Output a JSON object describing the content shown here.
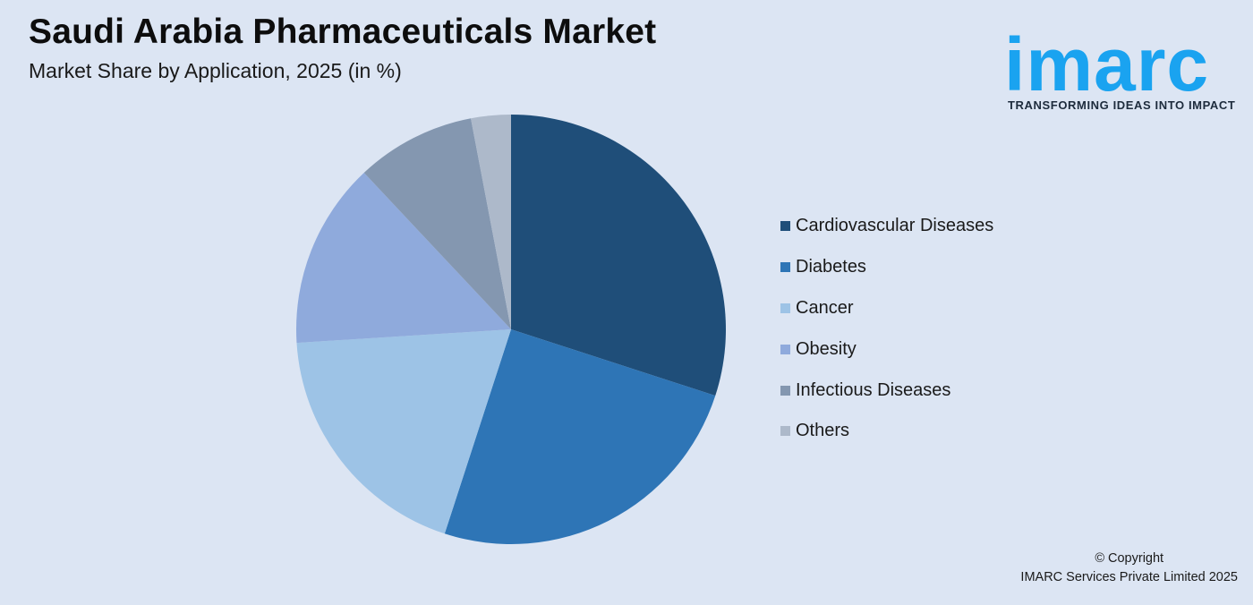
{
  "header": {
    "title": "Saudi Arabia Pharmaceuticals Market",
    "subtitle": "Market Share by Application, 2025 (in %)"
  },
  "logo": {
    "word": "imarc",
    "tagline": "TRANSFORMING IDEAS INTO IMPACT",
    "color": "#1aa3f0"
  },
  "chart_data": {
    "type": "pie",
    "title": "Saudi Arabia Pharmaceuticals Market",
    "subtitle": "Market Share by Application, 2025 (in %)",
    "legend_position": "right",
    "slices": [
      {
        "label": "Cardiovascular Diseases",
        "value": 30,
        "color": "#1f4e79"
      },
      {
        "label": "Diabetes",
        "value": 25,
        "color": "#2e75b6"
      },
      {
        "label": "Cancer",
        "value": 19,
        "color": "#9dc3e6"
      },
      {
        "label": "Obesity",
        "value": 14,
        "color": "#8faadc"
      },
      {
        "label": "Infectious Diseases",
        "value": 9,
        "color": "#8497b0"
      },
      {
        "label": "Others",
        "value": 3,
        "color": "#adb9ca"
      }
    ]
  },
  "footer": {
    "copyright_line1": "© Copyright",
    "copyright_line2": "IMARC Services Private Limited 2025"
  }
}
